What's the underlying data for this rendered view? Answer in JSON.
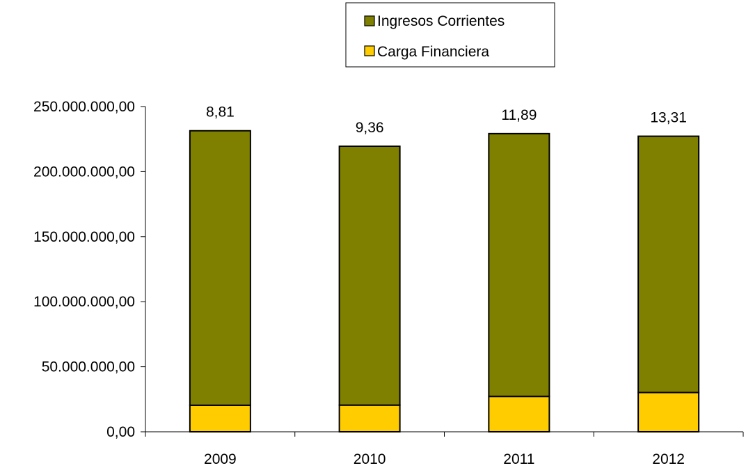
{
  "chart_data": {
    "type": "bar",
    "stacked": true,
    "categories": [
      "2009",
      "2010",
      "2011",
      "2012"
    ],
    "series": [
      {
        "name": "Carga Financiera",
        "color": "#FFCC00",
        "values": [
          20400000,
          20500000,
          27200000,
          30200000
        ]
      },
      {
        "name": "Ingresos Corrientes",
        "color": "#808000",
        "values": [
          211000000,
          199000000,
          202000000,
          197000000
        ]
      }
    ],
    "data_labels": [
      "8,81",
      "9,36",
      "11,89",
      "13,31"
    ],
    "y_ticks": [
      "0,00",
      "50.000.000,00",
      "100.000.000,00",
      "150.000.000,00",
      "200.000.000,00",
      "250.000.000,00"
    ],
    "ylim": [
      0,
      250000000
    ],
    "ytick_step": 50000000,
    "grid": false,
    "legend": {
      "placement": "top-center",
      "entries": [
        "Ingresos Corrientes",
        "Carga Financiera"
      ]
    },
    "title": "",
    "xlabel": "",
    "ylabel": ""
  }
}
